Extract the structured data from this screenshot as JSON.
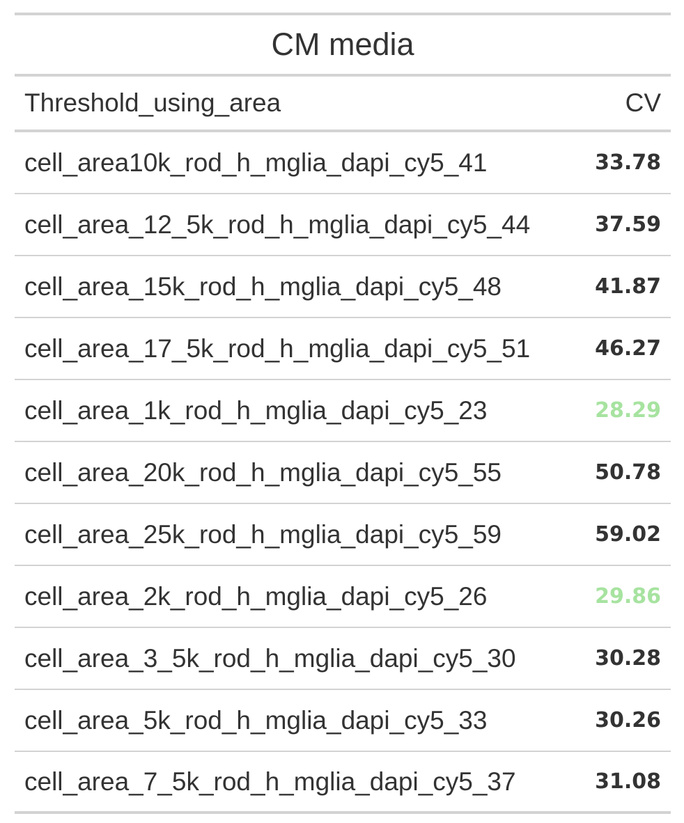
{
  "table": {
    "title": "CM media",
    "columns": [
      "Threshold_using_area",
      "CV"
    ],
    "highlight_color": "#a7e3a0",
    "rows": [
      {
        "name": "cell_area10k_rod_h_mglia_dapi_cy5_41",
        "cv": "33.78",
        "highlight": false
      },
      {
        "name": "cell_area_12_5k_rod_h_mglia_dapi_cy5_44",
        "cv": "37.59",
        "highlight": false
      },
      {
        "name": "cell_area_15k_rod_h_mglia_dapi_cy5_48",
        "cv": "41.87",
        "highlight": false
      },
      {
        "name": "cell_area_17_5k_rod_h_mglia_dapi_cy5_51",
        "cv": "46.27",
        "highlight": false
      },
      {
        "name": "cell_area_1k_rod_h_mglia_dapi_cy5_23",
        "cv": "28.29",
        "highlight": true
      },
      {
        "name": "cell_area_20k_rod_h_mglia_dapi_cy5_55",
        "cv": "50.78",
        "highlight": false
      },
      {
        "name": "cell_area_25k_rod_h_mglia_dapi_cy5_59",
        "cv": "59.02",
        "highlight": false
      },
      {
        "name": "cell_area_2k_rod_h_mglia_dapi_cy5_26",
        "cv": "29.86",
        "highlight": true
      },
      {
        "name": "cell_area_3_5k_rod_h_mglia_dapi_cy5_30",
        "cv": "30.28",
        "highlight": false
      },
      {
        "name": "cell_area_5k_rod_h_mglia_dapi_cy5_33",
        "cv": "30.26",
        "highlight": false
      },
      {
        "name": "cell_area_7_5k_rod_h_mglia_dapi_cy5_37",
        "cv": "31.08",
        "highlight": false
      }
    ]
  }
}
